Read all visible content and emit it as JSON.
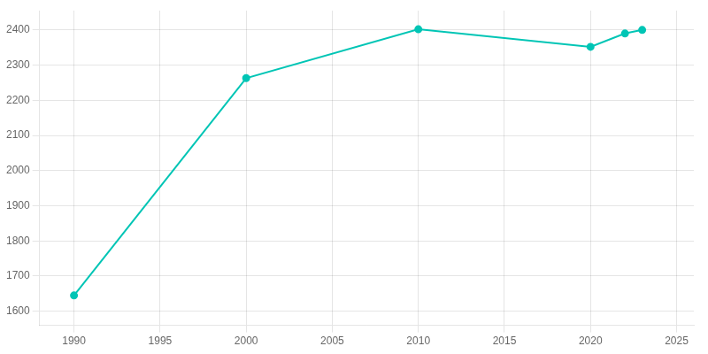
{
  "chart_data": {
    "type": "line",
    "x": [
      1990,
      2000,
      2010,
      2020,
      2022,
      2023
    ],
    "values": [
      1645,
      2263,
      2402,
      2352,
      2390,
      2400
    ],
    "color": "#00C5B5",
    "marker": "circle",
    "xlim": [
      1988,
      2026
    ],
    "ylim": [
      1560,
      2455
    ],
    "xticks": [
      1990,
      1995,
      2000,
      2005,
      2010,
      2015,
      2020,
      2025
    ],
    "yticks": [
      1600,
      1700,
      1800,
      1900,
      2000,
      2100,
      2200,
      2300,
      2400
    ],
    "grid": true
  }
}
